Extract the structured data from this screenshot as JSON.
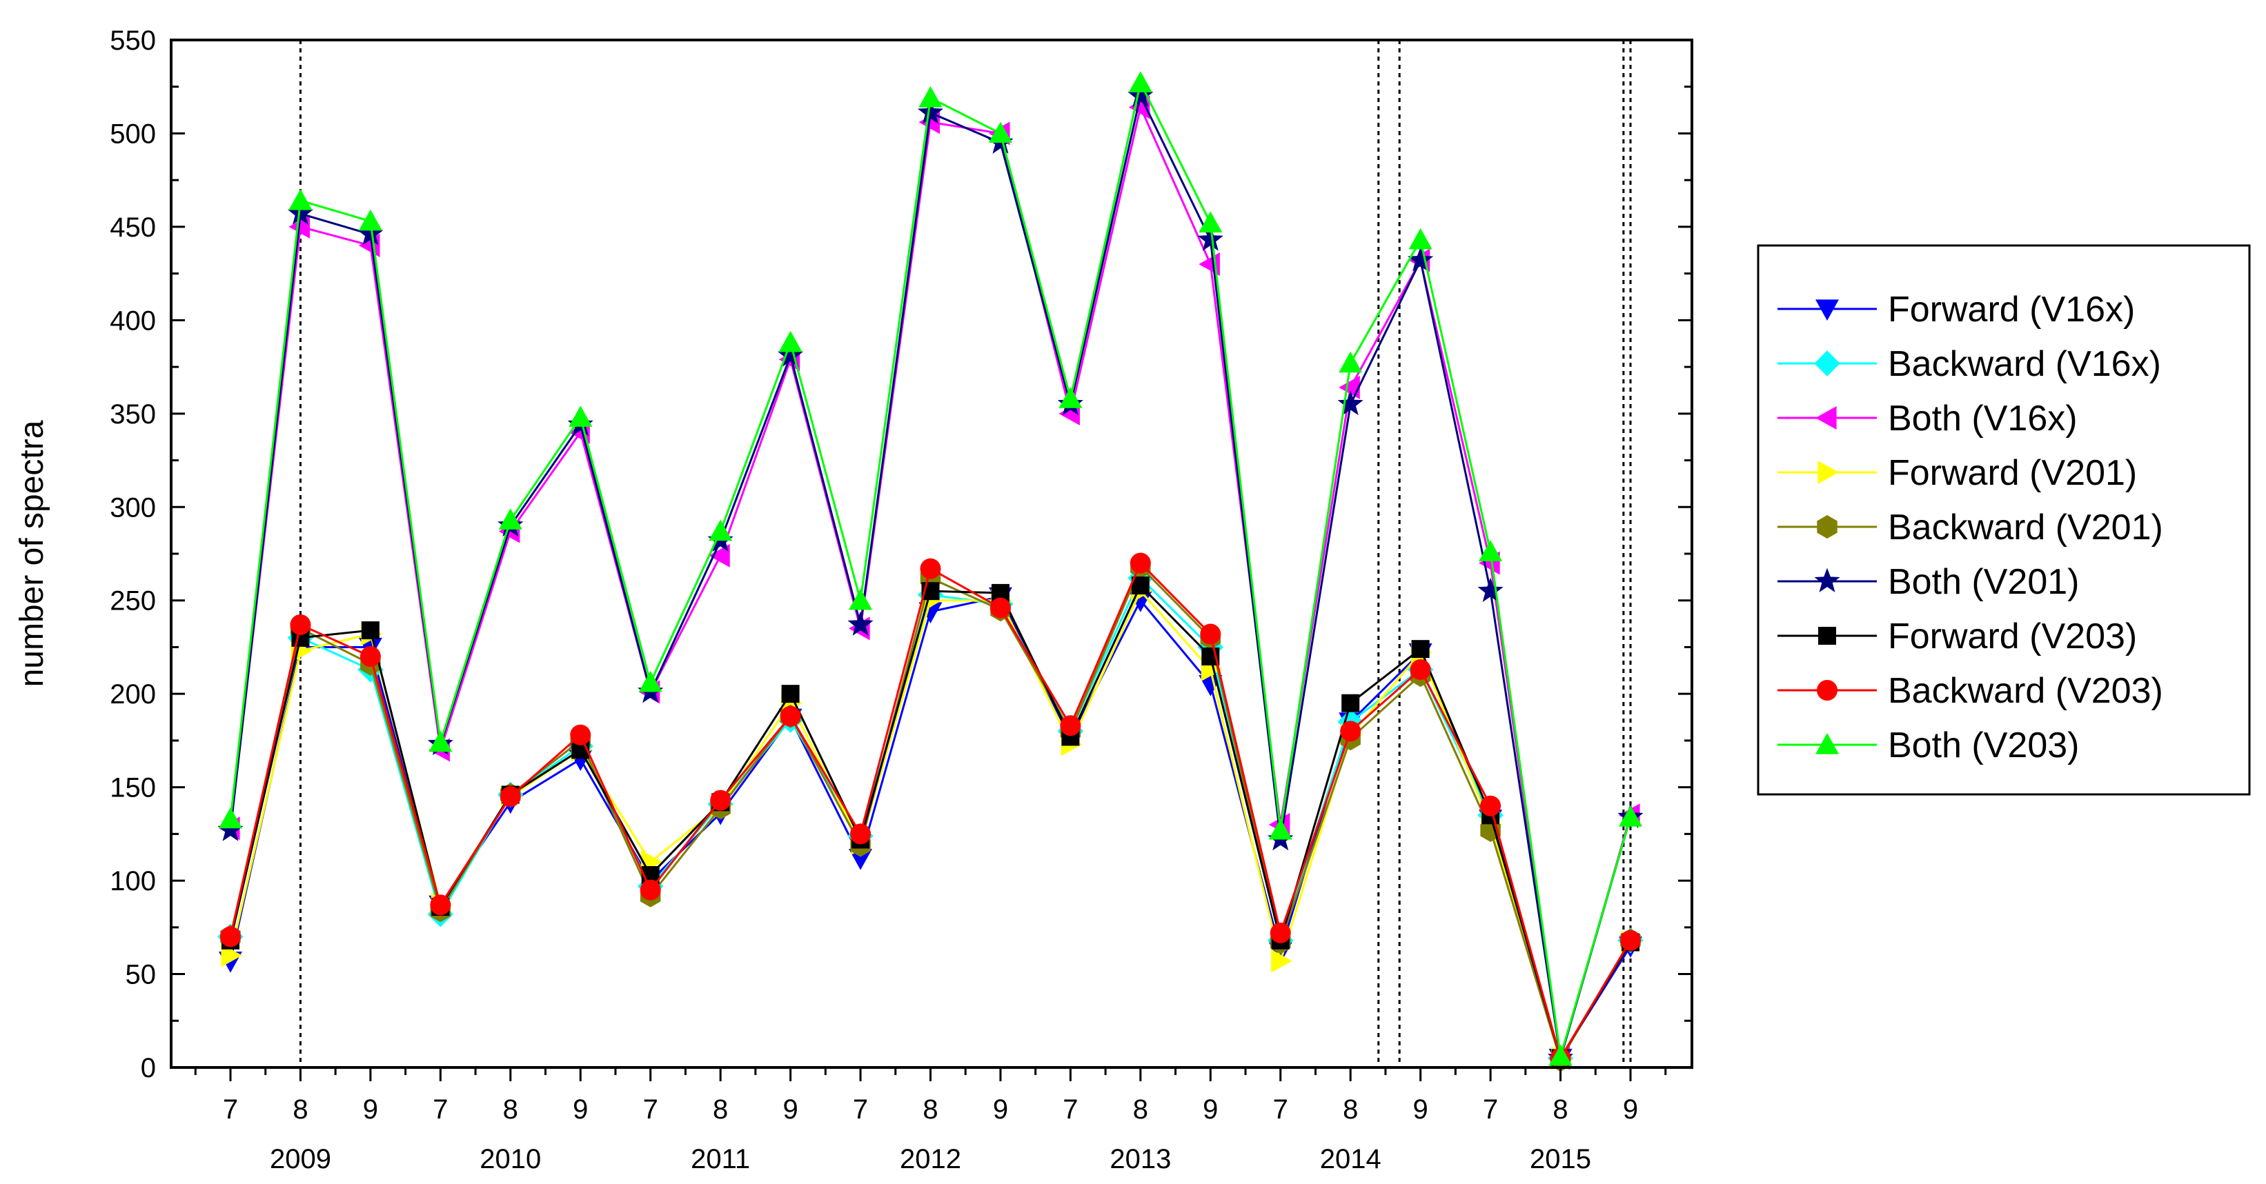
{
  "chart_data": {
    "type": "line",
    "title": "",
    "xlabel": "",
    "ylabel": "number of spectra",
    "ylim": [
      0,
      550
    ],
    "yticks": [
      0,
      50,
      100,
      150,
      200,
      250,
      300,
      350,
      400,
      450,
      500,
      550
    ],
    "grid": false,
    "legend_position": "right",
    "categories": [
      "7",
      "8",
      "9",
      "7",
      "8",
      "9",
      "7",
      "8",
      "9",
      "7",
      "8",
      "9",
      "7",
      "8",
      "9",
      "7",
      "8",
      "9",
      "7",
      "8",
      "9"
    ],
    "groups": [
      {
        "label": "2009",
        "start": 0,
        "end": 2
      },
      {
        "label": "2010",
        "start": 3,
        "end": 5
      },
      {
        "label": "2011",
        "start": 6,
        "end": 8
      },
      {
        "label": "2012",
        "start": 9,
        "end": 11
      },
      {
        "label": "2013",
        "start": 12,
        "end": 14
      },
      {
        "label": "2014",
        "start": 15,
        "end": 17
      },
      {
        "label": "2015",
        "start": 18,
        "end": 20
      }
    ],
    "vlines": [
      1,
      16.4,
      16.7,
      19.9,
      20
    ],
    "series": [
      {
        "name": "Forward (V16x)",
        "color": "#0000ff",
        "marker": "triangle-down",
        "values": [
          57,
          225,
          225,
          87,
          142,
          165,
          100,
          136,
          187,
          112,
          244,
          252,
          176,
          250,
          205,
          62,
          185,
          222,
          133,
          5,
          65
        ]
      },
      {
        "name": "Backward (V16x)",
        "color": "#00ffff",
        "marker": "diamond",
        "values": [
          70,
          230,
          213,
          82,
          146,
          172,
          97,
          141,
          186,
          124,
          253,
          248,
          180,
          262,
          225,
          68,
          185,
          213,
          135,
          5,
          68
        ]
      },
      {
        "name": "Both (V16x)",
        "color": "#ff00ff",
        "marker": "triangle-left",
        "values": [
          128,
          450,
          440,
          170,
          287,
          340,
          201,
          274,
          379,
          235,
          506,
          500,
          350,
          514,
          430,
          130,
          364,
          432,
          270,
          5,
          135
        ]
      },
      {
        "name": "Forward (V201)",
        "color": "#ffff00",
        "marker": "triangle-right",
        "values": [
          60,
          223,
          232,
          87,
          145,
          170,
          110,
          140,
          195,
          120,
          250,
          250,
          173,
          255,
          213,
          57,
          178,
          222,
          130,
          5,
          67
        ]
      },
      {
        "name": "Backward (V201)",
        "color": "#808000",
        "marker": "hexagon",
        "values": [
          70,
          235,
          216,
          84,
          146,
          175,
          92,
          139,
          188,
          119,
          262,
          245,
          180,
          268,
          230,
          67,
          176,
          210,
          127,
          4,
          68
        ]
      },
      {
        "name": "Both (V201)",
        "color": "#000080",
        "marker": "star",
        "values": [
          127,
          457,
          446,
          173,
          290,
          344,
          201,
          282,
          381,
          237,
          511,
          495,
          355,
          520,
          443,
          122,
          355,
          432,
          255,
          5,
          134
        ]
      },
      {
        "name": "Forward (V203)",
        "color": "#000000",
        "marker": "square",
        "values": [
          68,
          230,
          234,
          86,
          146,
          170,
          103,
          142,
          200,
          122,
          255,
          254,
          177,
          258,
          220,
          68,
          195,
          224,
          135,
          5,
          67
        ]
      },
      {
        "name": "Backward (V203)",
        "color": "#ff0000",
        "marker": "circle",
        "values": [
          70,
          237,
          220,
          87,
          145,
          178,
          95,
          143,
          188,
          125,
          267,
          246,
          183,
          270,
          232,
          72,
          180,
          213,
          140,
          5,
          68
        ]
      },
      {
        "name": "Both (V203)",
        "color": "#00ff00",
        "marker": "triangle-up",
        "values": [
          133,
          464,
          453,
          174,
          293,
          348,
          206,
          287,
          388,
          250,
          519,
          500,
          358,
          527,
          452,
          127,
          377,
          443,
          276,
          6,
          134
        ]
      }
    ]
  }
}
